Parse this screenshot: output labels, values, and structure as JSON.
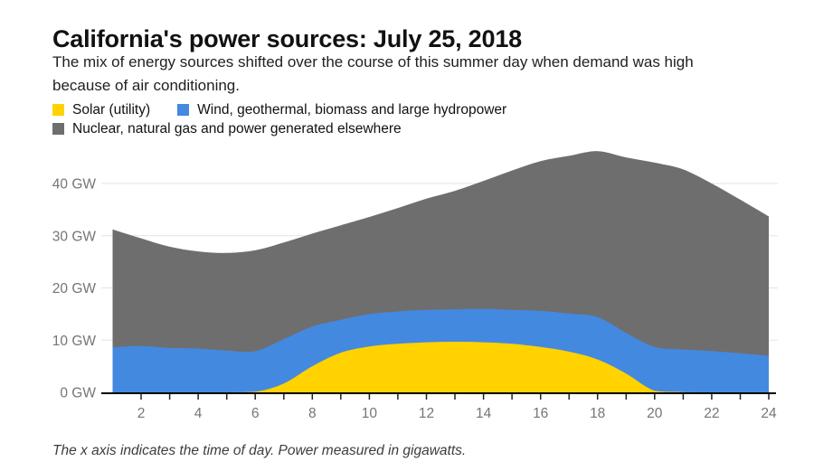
{
  "header": {
    "title": "California's power sources: July 25, 2018",
    "subtitle_lines": [
      "The mix of energy sources shifted over the course of this summer day when demand was high",
      "because of air conditioning."
    ]
  },
  "footnote": "The x axis indicates the time of day. Power measured in gigawatts.",
  "chart_data": {
    "type": "area",
    "stacked": true,
    "unit": "GW",
    "grid": true,
    "legend_position": "top-left",
    "x": [
      1,
      2,
      3,
      4,
      5,
      6,
      7,
      8,
      9,
      10,
      11,
      12,
      13,
      14,
      15,
      16,
      17,
      18,
      19,
      20,
      21,
      22,
      23,
      24
    ],
    "x_tick_labels": [
      2,
      4,
      6,
      8,
      10,
      12,
      14,
      16,
      18,
      20,
      22,
      24
    ],
    "y_ticks": [
      {
        "value": 0,
        "label": "0 GW"
      },
      {
        "value": 10,
        "label": "10 GW"
      },
      {
        "value": 20,
        "label": "20 GW"
      },
      {
        "value": 30,
        "label": "30 GW"
      },
      {
        "value": 40,
        "label": "40 GW"
      }
    ],
    "ylim": [
      0,
      48
    ],
    "series": [
      {
        "name": "Solar (utility)",
        "color": "#FFD200",
        "values": [
          0,
          0,
          0,
          0,
          0,
          0.1,
          1.7,
          5.0,
          7.6,
          8.8,
          9.3,
          9.6,
          9.7,
          9.6,
          9.3,
          8.7,
          7.8,
          6.3,
          3.6,
          0.3,
          0.05,
          0,
          0,
          0
        ]
      },
      {
        "name": "Wind, geothermal, biomass and large hydropower",
        "color": "#4389E0",
        "values": [
          8.6,
          8.9,
          8.5,
          8.4,
          8.0,
          7.8,
          8.5,
          7.6,
          6.3,
          6.2,
          6.2,
          6.2,
          6.2,
          6.4,
          6.5,
          6.9,
          7.3,
          8.1,
          7.8,
          8.4,
          8.15,
          7.9,
          7.5,
          7.0
        ]
      },
      {
        "name": "Nuclear, natural gas and power generated elsewhere",
        "color": "#6E6E6E",
        "values": [
          22.6,
          20.6,
          19.4,
          18.6,
          18.7,
          19.3,
          18.5,
          17.8,
          18.1,
          18.6,
          19.8,
          21.3,
          22.7,
          24.5,
          26.7,
          28.7,
          30.2,
          31.8,
          33.6,
          35.3,
          34.5,
          32.1,
          29.4,
          26.7
        ]
      }
    ],
    "axis_colors": {
      "gridline": "#e3e3e3",
      "axis_line": "#000000",
      "tick": "#222222",
      "tick_label": "#757575"
    }
  }
}
